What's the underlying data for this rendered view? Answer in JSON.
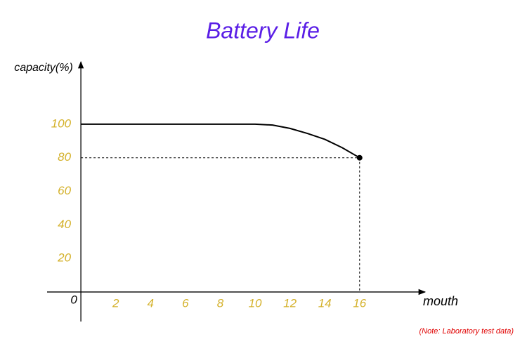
{
  "chart_data": {
    "type": "line",
    "title": "Battery Life",
    "y_label": "capacity(%)",
    "x_label": "mouth",
    "note": "(Note: Laboratory test data)",
    "x": [
      0,
      10,
      11,
      12,
      13,
      14,
      15,
      16
    ],
    "series": [
      {
        "color": "#000000",
        "values": [
          100,
          100,
          99.5,
          97.5,
          94.5,
          91,
          86,
          80
        ]
      }
    ],
    "xlim": [
      -1.94,
      19.76
    ],
    "ylim": [
      -17.6,
      137.2
    ],
    "xticks": [
      0,
      2,
      4,
      6,
      8,
      10,
      12,
      14,
      16
    ],
    "yticks": [
      20,
      40,
      60,
      80,
      100
    ],
    "tick_color": "#d4b12a",
    "title_color": "#5a1ee6",
    "note_color": "#e00000"
  }
}
